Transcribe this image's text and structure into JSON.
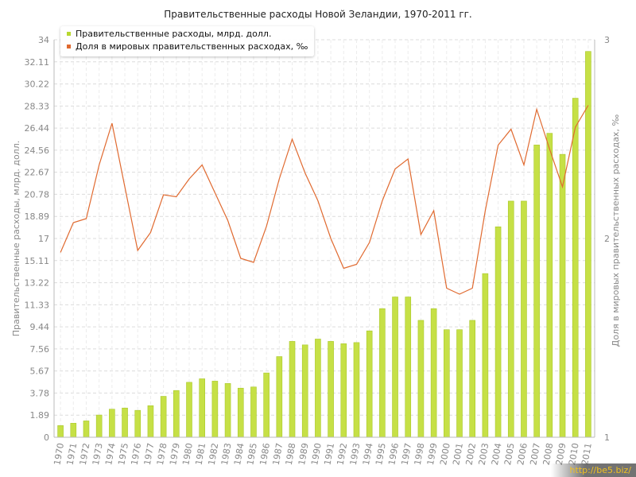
{
  "title": "Правительственные расходы Новой Зеландии, 1970-2011 гг.",
  "watermark": "http://be5.biz/",
  "legend": [
    {
      "label": "Правительственные расходы, млрд. долл.",
      "color": "#b8d830"
    },
    {
      "label": "Доля в мировых правительственных расходах, ‰",
      "color": "#e06a30"
    }
  ],
  "colors": {
    "bar": "#c6e046",
    "bar_edge": "#a9c82a",
    "line": "#e06a30",
    "grid": "#dcdcdc",
    "axis_text": "#888888"
  },
  "chart_data": {
    "type": "bar",
    "title": "Правительственные расходы Новой Зеландии, 1970-2011 гг.",
    "grid": true,
    "legend_position": "top-left",
    "categories": [
      "1970",
      "1971",
      "1972",
      "1973",
      "1974",
      "1975",
      "1976",
      "1977",
      "1978",
      "1979",
      "1980",
      "1981",
      "1982",
      "1983",
      "1984",
      "1985",
      "1986",
      "1987",
      "1988",
      "1989",
      "1990",
      "1991",
      "1992",
      "1993",
      "1994",
      "1995",
      "1996",
      "1997",
      "1998",
      "1999",
      "2000",
      "2001",
      "2002",
      "2003",
      "2004",
      "2005",
      "2006",
      "2007",
      "2008",
      "2009",
      "2010",
      "2011"
    ],
    "y_left": {
      "label": "Правительственные расходы, млрд. долл.",
      "ticks": [
        "0",
        "1.89",
        "3.78",
        "5.67",
        "7.56",
        "9.44",
        "11.33",
        "13.22",
        "15.11",
        "17",
        "18.89",
        "20.78",
        "22.67",
        "24.56",
        "26.44",
        "28.33",
        "30.22",
        "32.11",
        "34"
      ],
      "ylim": [
        0,
        34
      ]
    },
    "y_right": {
      "label": "Доля в мировых правительственных расходах, ‰",
      "ticks": [
        "1",
        "2",
        "3"
      ],
      "ylim": [
        1,
        3
      ]
    },
    "series": [
      {
        "name": "Правительственные расходы, млрд. долл.",
        "type": "bar",
        "axis": "left",
        "values": [
          1.0,
          1.2,
          1.4,
          1.9,
          2.4,
          2.5,
          2.3,
          2.7,
          3.5,
          4.0,
          4.7,
          5.0,
          4.8,
          4.6,
          4.2,
          4.3,
          5.5,
          6.9,
          8.2,
          7.9,
          8.4,
          8.2,
          8.0,
          8.1,
          9.1,
          11.0,
          12.0,
          12.0,
          10.0,
          11.0,
          9.2,
          9.2,
          10.0,
          14.0,
          18.0,
          20.2,
          20.2,
          25.0,
          26.0,
          24.2,
          29.0,
          33.0
        ]
      },
      {
        "name": "Доля в мировых правительственных расходах, ‰",
        "type": "line",
        "axis": "right",
        "values": [
          1.93,
          2.08,
          2.1,
          2.37,
          2.58,
          2.26,
          1.94,
          2.03,
          2.22,
          2.21,
          2.3,
          2.37,
          2.23,
          2.09,
          1.9,
          1.88,
          2.06,
          2.3,
          2.5,
          2.33,
          2.19,
          2.0,
          1.85,
          1.87,
          1.98,
          2.19,
          2.35,
          2.4,
          2.02,
          2.14,
          1.75,
          1.72,
          1.75,
          2.14,
          2.47,
          2.55,
          2.37,
          2.65,
          2.45,
          2.26,
          2.56,
          2.67
        ]
      }
    ]
  }
}
